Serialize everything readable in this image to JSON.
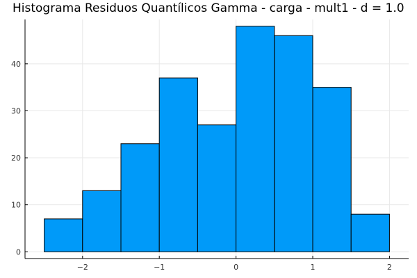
{
  "chart_data": {
    "type": "bar",
    "title": "Histograma Residuos Quantílicos Gamma - carga - mult1 - d = 1.0",
    "bin_edges": [
      -2.5,
      -2.0,
      -1.5,
      -1.0,
      -0.5,
      0.0,
      0.5,
      1.0,
      1.5,
      2.0
    ],
    "values": [
      7,
      13,
      23,
      37,
      27,
      48,
      46,
      35,
      8
    ],
    "xlabel": "",
    "ylabel": "",
    "xlim": [
      -2.75,
      2.25
    ],
    "ylim": [
      -1.44,
      49.44
    ],
    "xticks": [
      -2,
      -1,
      0,
      1,
      2
    ],
    "xtick_labels": [
      "−2",
      "−1",
      "0",
      "1",
      "2"
    ],
    "yticks": [
      0,
      10,
      20,
      30,
      40
    ],
    "ytick_labels": [
      "0",
      "10",
      "20",
      "30",
      "40"
    ],
    "grid": true,
    "legend": "none",
    "bar_color": "#009af9",
    "edge_color": "#000000"
  }
}
